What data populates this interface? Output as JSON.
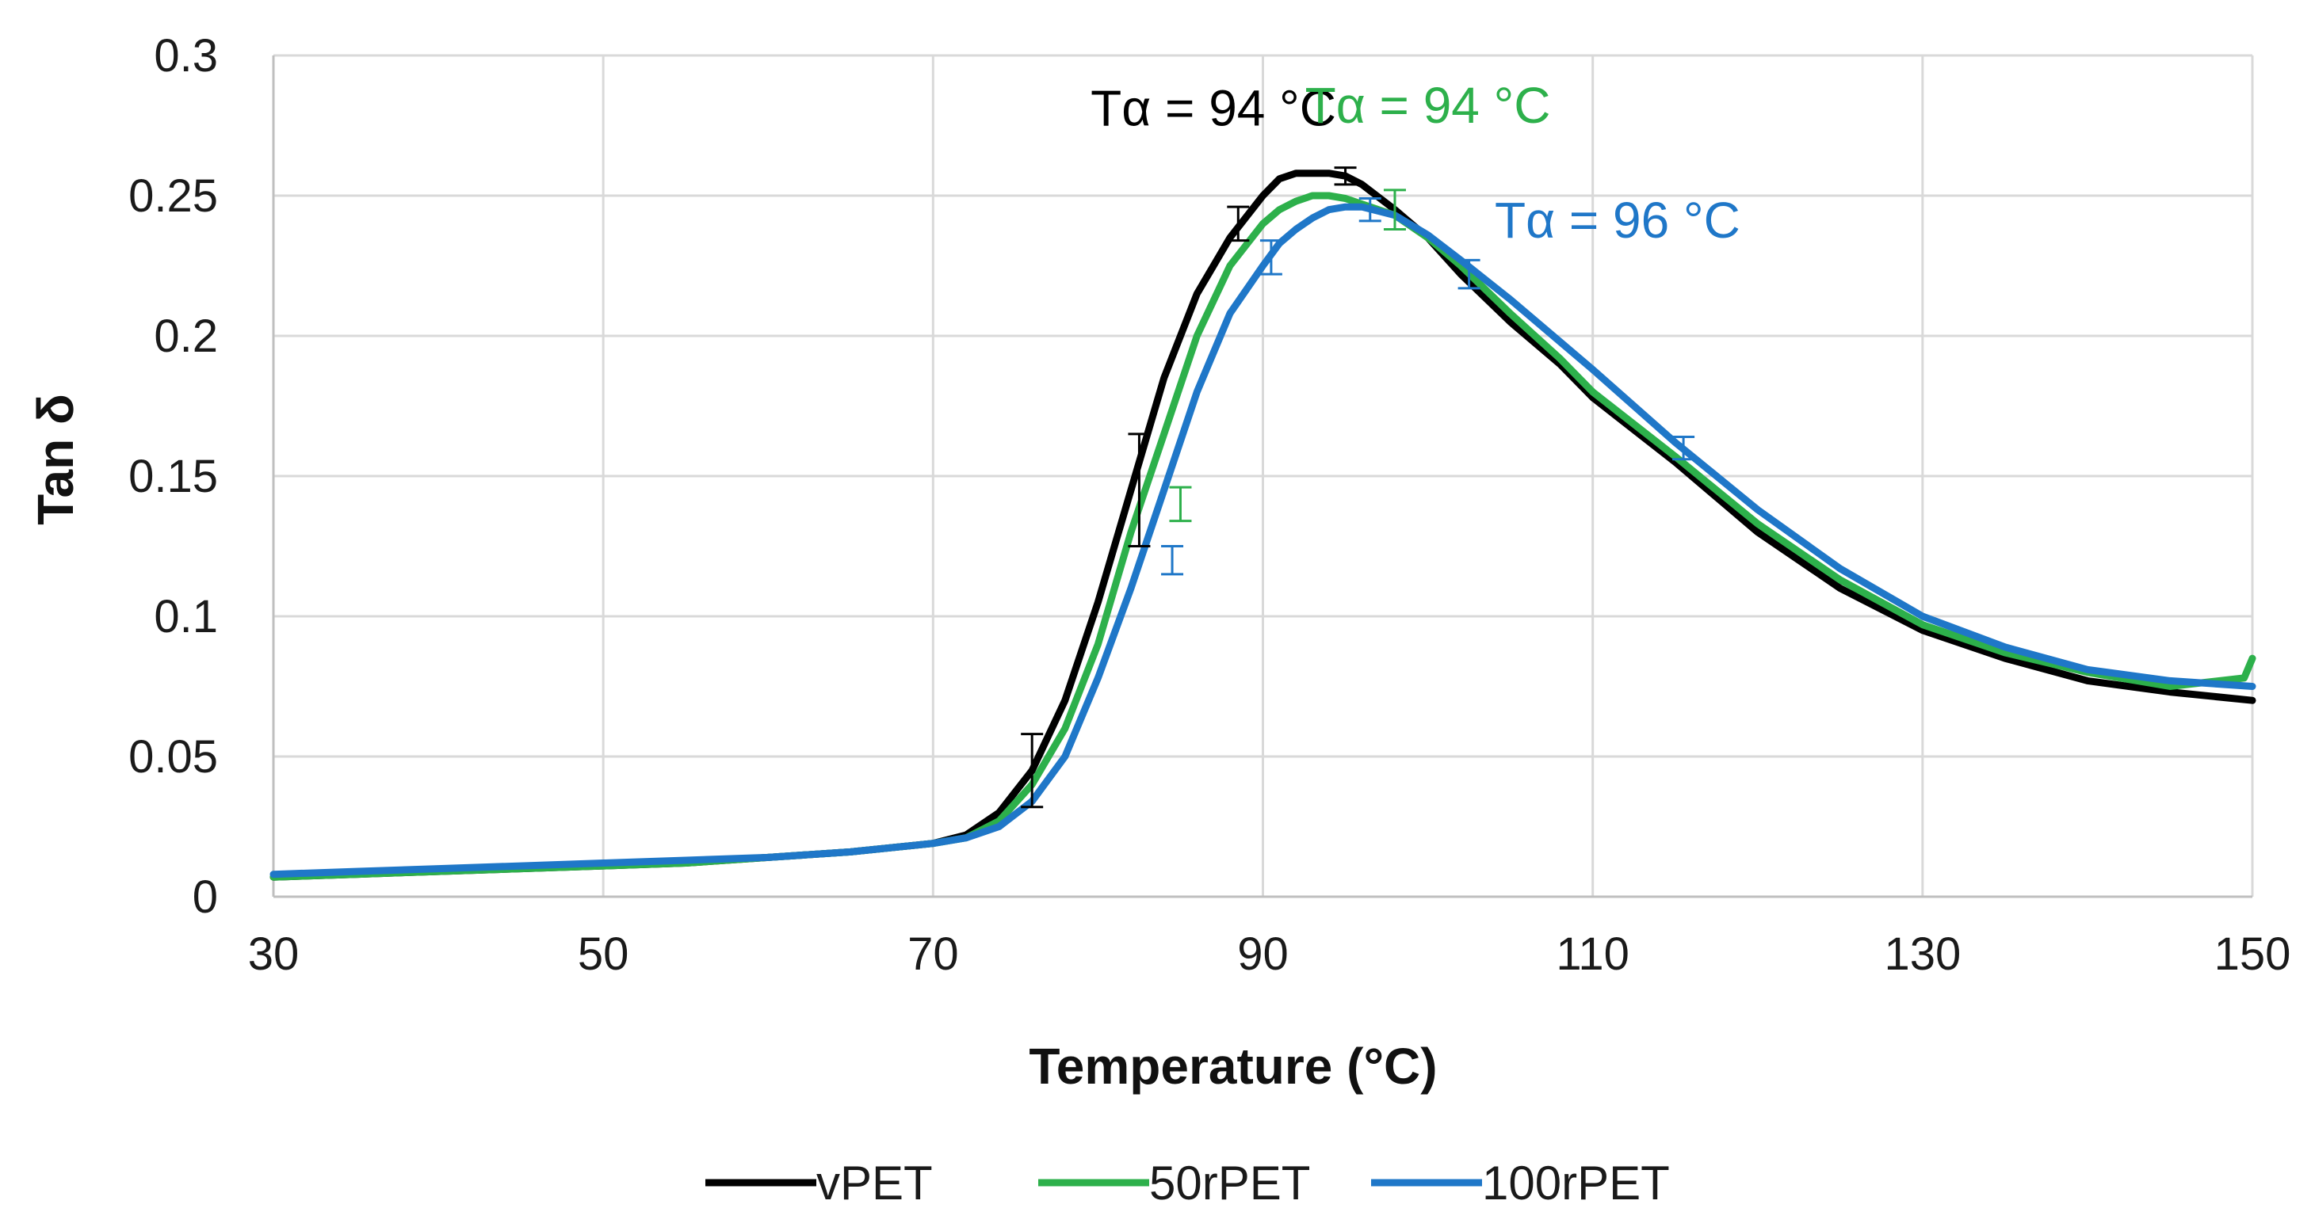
{
  "chart_data": {
    "type": "line",
    "title": "",
    "xlabel": "Temperature (°C)",
    "ylabel": "Tan δ",
    "xlim": [
      30,
      150
    ],
    "ylim": [
      0,
      0.3
    ],
    "xticks": [
      30,
      50,
      70,
      90,
      110,
      130,
      150
    ],
    "yticks": [
      0,
      0.05,
      0.1,
      0.15,
      0.2,
      0.25,
      0.3
    ],
    "xtick_labels": [
      "30",
      "50",
      "70",
      "90",
      "110",
      "130",
      "150"
    ],
    "ytick_labels": [
      "0",
      "0.05",
      "0.1",
      "0.15",
      "0.2",
      "0.25",
      "0.3"
    ],
    "grid": true,
    "legend_position": "bottom-center",
    "series": [
      {
        "name": "vPET",
        "color": "#000000",
        "x": [
          30,
          35,
          40,
          45,
          50,
          55,
          60,
          65,
          70,
          72,
          74,
          76,
          78,
          80,
          82,
          84,
          86,
          88,
          90,
          91,
          92,
          93,
          94,
          95,
          96,
          98,
          100,
          102,
          105,
          108,
          110,
          115,
          120,
          125,
          130,
          135,
          140,
          145,
          150
        ],
        "y": [
          0.007,
          0.008,
          0.009,
          0.01,
          0.011,
          0.012,
          0.014,
          0.016,
          0.019,
          0.022,
          0.03,
          0.045,
          0.07,
          0.105,
          0.145,
          0.185,
          0.215,
          0.235,
          0.25,
          0.256,
          0.258,
          0.258,
          0.258,
          0.257,
          0.254,
          0.245,
          0.235,
          0.222,
          0.205,
          0.19,
          0.178,
          0.155,
          0.13,
          0.11,
          0.095,
          0.085,
          0.077,
          0.073,
          0.07
        ]
      },
      {
        "name": "50rPET",
        "color": "#2db04b",
        "x": [
          30,
          35,
          40,
          45,
          50,
          55,
          60,
          65,
          70,
          72,
          74,
          76,
          78,
          80,
          82,
          84,
          86,
          88,
          90,
          91,
          92,
          93,
          94,
          95,
          96,
          98,
          100,
          102,
          105,
          108,
          110,
          115,
          120,
          125,
          130,
          135,
          140,
          145,
          149.5,
          150
        ],
        "y": [
          0.007,
          0.008,
          0.009,
          0.01,
          0.011,
          0.012,
          0.014,
          0.016,
          0.019,
          0.021,
          0.027,
          0.04,
          0.06,
          0.09,
          0.13,
          0.165,
          0.2,
          0.225,
          0.24,
          0.245,
          0.248,
          0.25,
          0.25,
          0.249,
          0.247,
          0.243,
          0.235,
          0.225,
          0.208,
          0.192,
          0.18,
          0.157,
          0.133,
          0.113,
          0.097,
          0.087,
          0.08,
          0.075,
          0.078,
          0.085
        ]
      },
      {
        "name": "100rPET",
        "color": "#1f77c8",
        "x": [
          30,
          35,
          40,
          45,
          50,
          55,
          60,
          65,
          70,
          72,
          74,
          76,
          78,
          80,
          82,
          84,
          86,
          88,
          90,
          91,
          92,
          93,
          94,
          95,
          96,
          98,
          100,
          102,
          105,
          108,
          110,
          115,
          120,
          125,
          130,
          135,
          140,
          145,
          150
        ],
        "y": [
          0.008,
          0.009,
          0.01,
          0.011,
          0.012,
          0.013,
          0.014,
          0.016,
          0.019,
          0.021,
          0.025,
          0.034,
          0.05,
          0.078,
          0.11,
          0.145,
          0.18,
          0.208,
          0.225,
          0.233,
          0.238,
          0.242,
          0.245,
          0.246,
          0.246,
          0.243,
          0.236,
          0.227,
          0.213,
          0.198,
          0.188,
          0.162,
          0.138,
          0.117,
          0.1,
          0.089,
          0.081,
          0.077,
          0.075
        ]
      }
    ],
    "error_bars": [
      {
        "series": "vPET",
        "points": [
          {
            "x": 76,
            "y": 0.045,
            "err": 0.013
          },
          {
            "x": 82.5,
            "y": 0.145,
            "err": 0.02
          },
          {
            "x": 88.5,
            "y": 0.24,
            "err": 0.006
          },
          {
            "x": 95,
            "y": 0.257,
            "err": 0.003
          }
        ]
      },
      {
        "series": "50rPET",
        "points": [
          {
            "x": 98,
            "y": 0.245,
            "err": 0.007
          },
          {
            "x": 85,
            "y": 0.14,
            "err": 0.006
          }
        ]
      },
      {
        "series": "100rPET",
        "points": [
          {
            "x": 84.5,
            "y": 0.12,
            "err": 0.005
          },
          {
            "x": 90.5,
            "y": 0.228,
            "err": 0.006
          },
          {
            "x": 96.5,
            "y": 0.245,
            "err": 0.004
          },
          {
            "x": 102.5,
            "y": 0.222,
            "err": 0.005
          },
          {
            "x": 115.5,
            "y": 0.16,
            "err": 0.004
          }
        ]
      }
    ],
    "annotations": [
      {
        "text": "Tα = 94 °C",
        "x": 87,
        "y": 0.275,
        "color": "#000000",
        "anchor": "middle"
      },
      {
        "text": "Tα = 94 °C",
        "x": 100,
        "y": 0.276,
        "color": "#2db04b",
        "anchor": "middle"
      },
      {
        "text": "Tα = 96 °C",
        "x": 111.5,
        "y": 0.235,
        "color": "#1f77c8",
        "anchor": "middle"
      }
    ]
  }
}
